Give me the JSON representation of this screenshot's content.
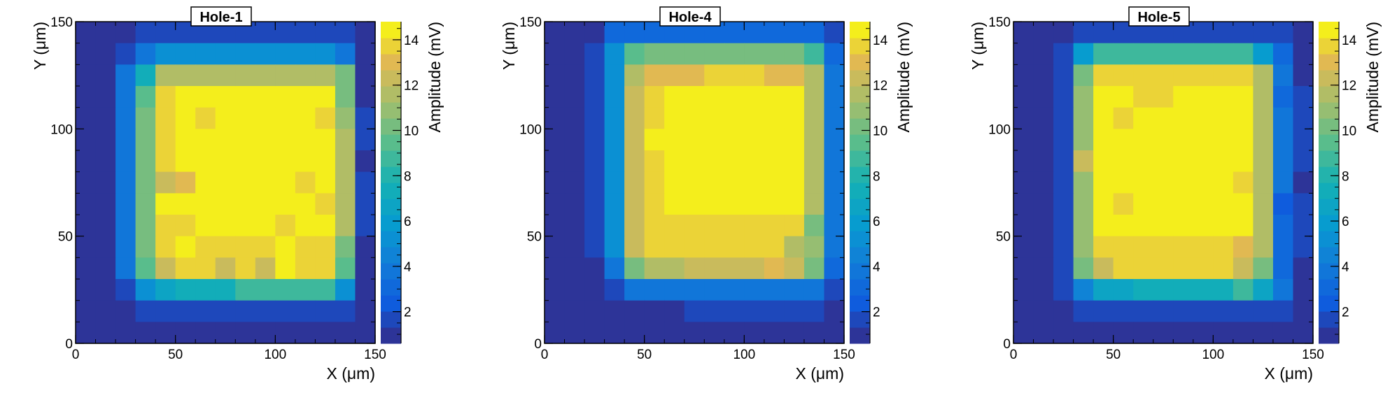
{
  "chart_data": [
    {
      "type": "heatmap",
      "title": "Hole-1",
      "xlabel": "X (μm)",
      "ylabel": "Y (μm)",
      "zlabel": "Amplitude (mV)",
      "xlim": [
        0,
        150
      ],
      "ylim": [
        0,
        150
      ],
      "zlim": [
        0.6,
        14.8
      ],
      "x_ticks": [
        "0",
        "50",
        "100",
        "150"
      ],
      "y_ticks": [
        "0",
        "50",
        "100",
        "150"
      ],
      "z_ticks": [
        "2",
        "4",
        "6",
        "8",
        "10",
        "12",
        "14"
      ],
      "bin_width": 10,
      "z_rows_top_to_bottom": [
        [
          0.8,
          0.8,
          0.8,
          1.5,
          1.5,
          1.5,
          1.5,
          1.5,
          1.5,
          1.5,
          1.5,
          1.5,
          1.5,
          1.5,
          0.8
        ],
        [
          0.8,
          0.8,
          1.5,
          3.5,
          5.5,
          5.5,
          5.5,
          5.5,
          5.5,
          5.5,
          5.5,
          5.5,
          5.5,
          3.5,
          0.8
        ],
        [
          0.8,
          0.8,
          3.5,
          7.5,
          11.5,
          11.5,
          11.5,
          11.5,
          11.5,
          11.5,
          11.5,
          11.5,
          11.5,
          10.0,
          0.8
        ],
        [
          0.8,
          0.8,
          3.5,
          9.5,
          13.5,
          14.5,
          14.5,
          14.5,
          14.5,
          14.5,
          14.5,
          14.5,
          14.5,
          10.5,
          0.8
        ],
        [
          0.8,
          0.8,
          3.5,
          10.0,
          13.5,
          14.5,
          14.0,
          14.5,
          14.5,
          14.5,
          14.5,
          14.5,
          14.0,
          11.0,
          1.5
        ],
        [
          0.8,
          0.8,
          3.5,
          10.0,
          14.0,
          14.5,
          14.5,
          14.5,
          14.5,
          14.5,
          14.5,
          14.5,
          14.5,
          11.5,
          1.5
        ],
        [
          0.8,
          0.8,
          3.5,
          10.0,
          14.0,
          14.5,
          14.5,
          14.5,
          14.5,
          14.5,
          14.5,
          14.5,
          14.5,
          11.5,
          0.8
        ],
        [
          0.8,
          0.8,
          3.5,
          10.5,
          12.5,
          13.0,
          14.5,
          14.5,
          14.5,
          14.5,
          14.5,
          14.0,
          14.5,
          11.5,
          1.5
        ],
        [
          0.8,
          0.8,
          3.5,
          10.5,
          14.5,
          14.5,
          14.5,
          14.5,
          14.5,
          14.5,
          14.5,
          14.5,
          14.0,
          11.5,
          1.5
        ],
        [
          0.8,
          0.8,
          3.5,
          10.5,
          13.5,
          13.5,
          14.5,
          14.5,
          14.5,
          14.5,
          14.0,
          14.5,
          14.5,
          11.5,
          1.5
        ],
        [
          0.8,
          0.8,
          3.5,
          10.0,
          13.5,
          14.5,
          14.0,
          14.0,
          14.0,
          14.0,
          14.5,
          14.0,
          14.0,
          10.0,
          0.8
        ],
        [
          0.8,
          0.8,
          3.5,
          9.5,
          12.5,
          13.5,
          13.5,
          12.5,
          13.5,
          12.5,
          14.5,
          13.5,
          13.5,
          9.5,
          0.8
        ],
        [
          0.8,
          0.8,
          1.5,
          5.5,
          6.5,
          7.5,
          7.5,
          7.5,
          8.5,
          8.5,
          8.5,
          8.5,
          8.5,
          5.5,
          0.8
        ],
        [
          0.8,
          0.8,
          0.8,
          1.5,
          1.5,
          2.0,
          1.5,
          1.5,
          2.0,
          2.0,
          2.0,
          2.0,
          2.0,
          2.0,
          0.8
        ],
        [
          0.8,
          0.8,
          0.8,
          0.8,
          0.8,
          0.8,
          0.8,
          0.8,
          0.8,
          0.8,
          0.8,
          0.8,
          0.8,
          0.8,
          0.8
        ]
      ]
    },
    {
      "type": "heatmap",
      "title": "Hole-4",
      "xlabel": "X (μm)",
      "ylabel": "Y (μm)",
      "zlabel": "Amplitude (mV)",
      "xlim": [
        0,
        150
      ],
      "ylim": [
        0,
        150
      ],
      "zlim": [
        0.6,
        14.8
      ],
      "x_ticks": [
        "0",
        "50",
        "100",
        "150"
      ],
      "y_ticks": [
        "0",
        "50",
        "100",
        "150"
      ],
      "z_ticks": [
        "2",
        "4",
        "6",
        "8",
        "10",
        "12",
        "14"
      ],
      "bin_width": 10,
      "z_rows_top_to_bottom": [
        [
          0.8,
          0.8,
          0.8,
          3.0,
          3.0,
          3.0,
          3.0,
          3.0,
          3.0,
          3.0,
          3.0,
          3.0,
          3.0,
          3.0,
          1.5
        ],
        [
          0.8,
          0.8,
          2.0,
          5.5,
          9.5,
          10.5,
          10.5,
          10.5,
          10.5,
          10.5,
          10.5,
          10.5,
          10.0,
          8.5,
          3.0
        ],
        [
          0.8,
          0.8,
          2.0,
          5.5,
          11.5,
          13.0,
          13.0,
          13.0,
          13.5,
          13.5,
          13.5,
          13.0,
          13.0,
          11.5,
          3.5
        ],
        [
          0.8,
          0.8,
          2.0,
          5.5,
          12.5,
          13.5,
          14.5,
          14.5,
          14.5,
          14.5,
          14.5,
          14.5,
          14.5,
          11.5,
          3.5
        ],
        [
          0.8,
          0.8,
          2.0,
          5.5,
          12.5,
          13.5,
          14.5,
          14.5,
          14.5,
          14.5,
          14.5,
          14.5,
          14.5,
          11.5,
          3.5
        ],
        [
          0.8,
          0.8,
          2.0,
          5.5,
          12.5,
          14.5,
          14.5,
          14.5,
          14.5,
          14.5,
          14.5,
          14.5,
          14.5,
          11.5,
          3.5
        ],
        [
          0.8,
          0.8,
          2.0,
          5.5,
          12.5,
          13.5,
          14.5,
          14.5,
          14.5,
          14.5,
          14.5,
          14.5,
          14.5,
          11.5,
          3.5
        ],
        [
          0.8,
          0.8,
          2.0,
          5.5,
          12.5,
          13.5,
          14.5,
          14.5,
          14.5,
          14.5,
          14.5,
          14.5,
          14.5,
          11.5,
          3.5
        ],
        [
          0.8,
          0.8,
          2.0,
          5.5,
          12.5,
          13.5,
          14.5,
          14.5,
          14.5,
          14.5,
          14.5,
          14.5,
          14.5,
          11.5,
          3.5
        ],
        [
          0.8,
          0.8,
          2.0,
          5.5,
          12.5,
          13.5,
          13.5,
          13.5,
          13.5,
          14.0,
          13.5,
          14.0,
          13.5,
          10.5,
          3.5
        ],
        [
          0.8,
          0.8,
          2.0,
          5.0,
          12.5,
          13.5,
          13.5,
          13.5,
          13.5,
          13.5,
          13.5,
          13.5,
          11.5,
          11.0,
          3.5
        ],
        [
          0.8,
          0.8,
          0.8,
          4.0,
          10.5,
          11.5,
          11.5,
          12.0,
          12.0,
          12.0,
          12.0,
          13.0,
          12.0,
          10.0,
          3.0
        ],
        [
          0.8,
          0.8,
          0.8,
          2.0,
          3.5,
          3.5,
          3.5,
          3.5,
          3.5,
          3.5,
          3.5,
          3.5,
          3.5,
          3.5,
          1.5
        ],
        [
          0.8,
          0.8,
          0.8,
          0.8,
          0.8,
          0.8,
          0.8,
          1.5,
          1.5,
          1.5,
          1.5,
          1.5,
          1.5,
          1.5,
          0.8
        ],
        [
          0.8,
          0.8,
          0.8,
          0.8,
          0.8,
          0.8,
          0.8,
          0.8,
          0.8,
          0.8,
          0.8,
          0.8,
          0.8,
          0.8,
          0.8
        ]
      ]
    },
    {
      "type": "heatmap",
      "title": "Hole-5",
      "xlabel": "X (μm)",
      "ylabel": "Y (μm)",
      "zlabel": "Amplitude (mV)",
      "xlim": [
        0,
        150
      ],
      "ylim": [
        0,
        150
      ],
      "zlim": [
        0.6,
        14.8
      ],
      "x_ticks": [
        "0",
        "50",
        "100",
        "150"
      ],
      "y_ticks": [
        "0",
        "50",
        "100",
        "150"
      ],
      "z_ticks": [
        "2",
        "4",
        "6",
        "8",
        "10",
        "12",
        "14"
      ],
      "bin_width": 10,
      "z_rows_top_to_bottom": [
        [
          0.8,
          0.8,
          0.8,
          1.5,
          1.5,
          2.0,
          2.0,
          1.5,
          1.5,
          1.5,
          1.5,
          1.5,
          1.5,
          1.5,
          0.8
        ],
        [
          0.8,
          0.8,
          1.5,
          6.0,
          8.5,
          8.5,
          8.5,
          8.5,
          8.5,
          8.5,
          8.5,
          8.5,
          6.0,
          3.0,
          0.8
        ],
        [
          0.8,
          0.8,
          2.0,
          10.5,
          14.0,
          14.0,
          13.5,
          13.5,
          13.5,
          13.5,
          13.5,
          13.5,
          11.5,
          3.5,
          0.8
        ],
        [
          0.8,
          0.8,
          2.0,
          11.0,
          14.5,
          14.5,
          14.0,
          14.0,
          14.5,
          14.5,
          14.5,
          14.5,
          11.5,
          3.0,
          1.5
        ],
        [
          0.8,
          0.8,
          2.0,
          11.0,
          14.5,
          14.0,
          14.5,
          14.5,
          14.5,
          14.5,
          14.5,
          14.5,
          11.5,
          3.5,
          1.5
        ],
        [
          0.8,
          0.8,
          2.0,
          11.0,
          14.5,
          14.5,
          14.5,
          14.5,
          14.5,
          14.5,
          14.5,
          14.5,
          11.5,
          3.5,
          1.5
        ],
        [
          0.8,
          0.8,
          2.0,
          12.0,
          14.5,
          14.5,
          14.5,
          14.5,
          14.5,
          14.5,
          14.5,
          14.5,
          11.5,
          3.5,
          1.5
        ],
        [
          0.8,
          0.8,
          2.0,
          11.0,
          14.5,
          14.5,
          14.5,
          14.5,
          14.5,
          14.5,
          14.5,
          14.0,
          11.5,
          3.5,
          0.8
        ],
        [
          0.8,
          0.8,
          2.0,
          11.0,
          14.5,
          14.0,
          14.5,
          14.5,
          14.5,
          14.5,
          14.5,
          14.5,
          11.5,
          2.5,
          1.5
        ],
        [
          0.8,
          0.8,
          2.0,
          11.0,
          14.5,
          14.5,
          14.5,
          14.5,
          14.5,
          14.5,
          14.5,
          14.5,
          11.5,
          3.0,
          1.5
        ],
        [
          0.8,
          0.8,
          2.0,
          11.0,
          13.5,
          13.5,
          13.5,
          13.5,
          13.5,
          13.5,
          13.5,
          13.0,
          11.5,
          3.0,
          1.5
        ],
        [
          0.8,
          0.8,
          2.0,
          10.5,
          12.5,
          13.5,
          13.5,
          13.5,
          13.5,
          13.5,
          13.5,
          12.5,
          10.5,
          3.0,
          0.8
        ],
        [
          0.8,
          0.8,
          1.5,
          4.5,
          6.5,
          6.5,
          7.5,
          7.5,
          7.5,
          7.5,
          7.5,
          8.5,
          6.5,
          4.0,
          0.8
        ],
        [
          0.8,
          0.8,
          0.8,
          1.5,
          1.5,
          2.0,
          1.5,
          1.5,
          1.5,
          1.5,
          1.5,
          1.5,
          2.0,
          1.5,
          0.8
        ],
        [
          0.8,
          0.8,
          0.8,
          0.8,
          0.8,
          0.8,
          0.8,
          0.8,
          0.8,
          0.8,
          0.8,
          0.8,
          0.8,
          0.8,
          0.8
        ]
      ]
    }
  ]
}
